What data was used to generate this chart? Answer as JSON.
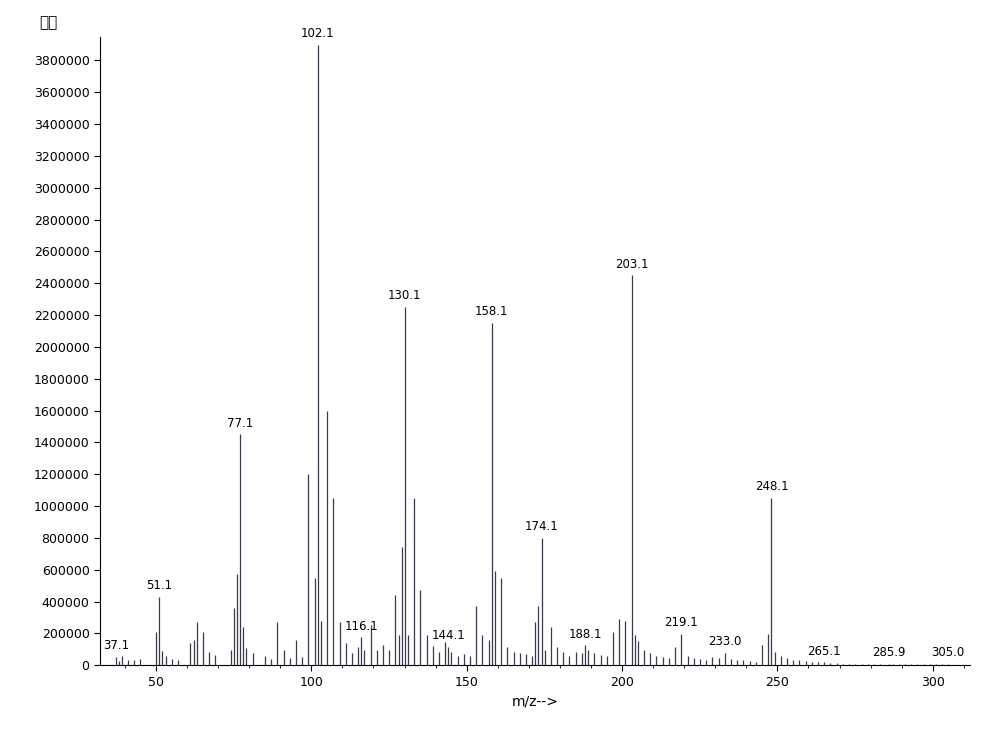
{
  "peaks": [
    {
      "mz": 37.1,
      "intensity": 50000,
      "label": "37.1",
      "label_show": true
    },
    {
      "mz": 38.1,
      "intensity": 25000,
      "label": "",
      "label_show": false
    },
    {
      "mz": 39.1,
      "intensity": 60000,
      "label": "",
      "label_show": false
    },
    {
      "mz": 41.0,
      "intensity": 35000,
      "label": "",
      "label_show": false
    },
    {
      "mz": 43.0,
      "intensity": 30000,
      "label": "",
      "label_show": false
    },
    {
      "mz": 45.0,
      "intensity": 40000,
      "label": "",
      "label_show": false
    },
    {
      "mz": 50.1,
      "intensity": 210000,
      "label": "",
      "label_show": false
    },
    {
      "mz": 51.1,
      "intensity": 430000,
      "label": "51.1",
      "label_show": true
    },
    {
      "mz": 52.1,
      "intensity": 90000,
      "label": "",
      "label_show": false
    },
    {
      "mz": 53.1,
      "intensity": 55000,
      "label": "",
      "label_show": false
    },
    {
      "mz": 55.1,
      "intensity": 40000,
      "label": "",
      "label_show": false
    },
    {
      "mz": 57.1,
      "intensity": 35000,
      "label": "",
      "label_show": false
    },
    {
      "mz": 61.1,
      "intensity": 140000,
      "label": "",
      "label_show": false
    },
    {
      "mz": 62.1,
      "intensity": 160000,
      "label": "",
      "label_show": false
    },
    {
      "mz": 63.1,
      "intensity": 270000,
      "label": "",
      "label_show": false
    },
    {
      "mz": 65.1,
      "intensity": 210000,
      "label": "",
      "label_show": false
    },
    {
      "mz": 67.1,
      "intensity": 85000,
      "label": "",
      "label_show": false
    },
    {
      "mz": 69.1,
      "intensity": 65000,
      "label": "",
      "label_show": false
    },
    {
      "mz": 74.1,
      "intensity": 95000,
      "label": "",
      "label_show": false
    },
    {
      "mz": 75.1,
      "intensity": 360000,
      "label": "",
      "label_show": false
    },
    {
      "mz": 76.1,
      "intensity": 570000,
      "label": "",
      "label_show": false
    },
    {
      "mz": 77.1,
      "intensity": 1450000,
      "label": "77.1",
      "label_show": true
    },
    {
      "mz": 78.1,
      "intensity": 240000,
      "label": "",
      "label_show": false
    },
    {
      "mz": 79.1,
      "intensity": 110000,
      "label": "",
      "label_show": false
    },
    {
      "mz": 81.1,
      "intensity": 75000,
      "label": "",
      "label_show": false
    },
    {
      "mz": 85.1,
      "intensity": 55000,
      "label": "",
      "label_show": false
    },
    {
      "mz": 87.1,
      "intensity": 40000,
      "label": "",
      "label_show": false
    },
    {
      "mz": 89.1,
      "intensity": 270000,
      "label": "",
      "label_show": false
    },
    {
      "mz": 91.1,
      "intensity": 95000,
      "label": "",
      "label_show": false
    },
    {
      "mz": 93.1,
      "intensity": 45000,
      "label": "",
      "label_show": false
    },
    {
      "mz": 95.1,
      "intensity": 160000,
      "label": "",
      "label_show": false
    },
    {
      "mz": 97.1,
      "intensity": 50000,
      "label": "",
      "label_show": false
    },
    {
      "mz": 99.1,
      "intensity": 1200000,
      "label": "",
      "label_show": false
    },
    {
      "mz": 101.1,
      "intensity": 550000,
      "label": "",
      "label_show": false
    },
    {
      "mz": 102.1,
      "intensity": 3900000,
      "label": "102.1",
      "label_show": true
    },
    {
      "mz": 103.1,
      "intensity": 280000,
      "label": "",
      "label_show": false
    },
    {
      "mz": 105.1,
      "intensity": 1600000,
      "label": "",
      "label_show": false
    },
    {
      "mz": 107.1,
      "intensity": 1050000,
      "label": "",
      "label_show": false
    },
    {
      "mz": 109.1,
      "intensity": 270000,
      "label": "",
      "label_show": false
    },
    {
      "mz": 111.1,
      "intensity": 140000,
      "label": "",
      "label_show": false
    },
    {
      "mz": 113.1,
      "intensity": 75000,
      "label": "",
      "label_show": false
    },
    {
      "mz": 115.1,
      "intensity": 115000,
      "label": "",
      "label_show": false
    },
    {
      "mz": 116.1,
      "intensity": 175000,
      "label": "116.1",
      "label_show": true
    },
    {
      "mz": 117.1,
      "intensity": 95000,
      "label": "",
      "label_show": false
    },
    {
      "mz": 119.1,
      "intensity": 250000,
      "label": "",
      "label_show": false
    },
    {
      "mz": 121.1,
      "intensity": 95000,
      "label": "",
      "label_show": false
    },
    {
      "mz": 123.1,
      "intensity": 125000,
      "label": "",
      "label_show": false
    },
    {
      "mz": 125.1,
      "intensity": 95000,
      "label": "",
      "label_show": false
    },
    {
      "mz": 127.1,
      "intensity": 440000,
      "label": "",
      "label_show": false
    },
    {
      "mz": 128.1,
      "intensity": 190000,
      "label": "",
      "label_show": false
    },
    {
      "mz": 129.1,
      "intensity": 740000,
      "label": "",
      "label_show": false
    },
    {
      "mz": 130.1,
      "intensity": 2250000,
      "label": "130.1",
      "label_show": true
    },
    {
      "mz": 131.1,
      "intensity": 190000,
      "label": "",
      "label_show": false
    },
    {
      "mz": 133.1,
      "intensity": 1050000,
      "label": "",
      "label_show": false
    },
    {
      "mz": 135.1,
      "intensity": 470000,
      "label": "",
      "label_show": false
    },
    {
      "mz": 137.1,
      "intensity": 190000,
      "label": "",
      "label_show": false
    },
    {
      "mz": 139.1,
      "intensity": 120000,
      "label": "",
      "label_show": false
    },
    {
      "mz": 141.1,
      "intensity": 85000,
      "label": "",
      "label_show": false
    },
    {
      "mz": 143.1,
      "intensity": 145000,
      "label": "",
      "label_show": false
    },
    {
      "mz": 144.1,
      "intensity": 115000,
      "label": "144.1",
      "label_show": true
    },
    {
      "mz": 145.1,
      "intensity": 80000,
      "label": "",
      "label_show": false
    },
    {
      "mz": 147.1,
      "intensity": 55000,
      "label": "",
      "label_show": false
    },
    {
      "mz": 149.1,
      "intensity": 70000,
      "label": "",
      "label_show": false
    },
    {
      "mz": 151.1,
      "intensity": 55000,
      "label": "",
      "label_show": false
    },
    {
      "mz": 153.1,
      "intensity": 370000,
      "label": "",
      "label_show": false
    },
    {
      "mz": 155.1,
      "intensity": 190000,
      "label": "",
      "label_show": false
    },
    {
      "mz": 157.1,
      "intensity": 160000,
      "label": "",
      "label_show": false
    },
    {
      "mz": 158.1,
      "intensity": 2150000,
      "label": "158.1",
      "label_show": true
    },
    {
      "mz": 159.1,
      "intensity": 590000,
      "label": "",
      "label_show": false
    },
    {
      "mz": 161.1,
      "intensity": 550000,
      "label": "",
      "label_show": false
    },
    {
      "mz": 163.1,
      "intensity": 115000,
      "label": "",
      "label_show": false
    },
    {
      "mz": 165.1,
      "intensity": 80000,
      "label": "",
      "label_show": false
    },
    {
      "mz": 167.1,
      "intensity": 75000,
      "label": "",
      "label_show": false
    },
    {
      "mz": 169.1,
      "intensity": 70000,
      "label": "",
      "label_show": false
    },
    {
      "mz": 171.1,
      "intensity": 55000,
      "label": "",
      "label_show": false
    },
    {
      "mz": 172.1,
      "intensity": 270000,
      "label": "",
      "label_show": false
    },
    {
      "mz": 173.1,
      "intensity": 370000,
      "label": "",
      "label_show": false
    },
    {
      "mz": 174.1,
      "intensity": 800000,
      "label": "174.1",
      "label_show": true
    },
    {
      "mz": 175.1,
      "intensity": 95000,
      "label": "",
      "label_show": false
    },
    {
      "mz": 177.1,
      "intensity": 240000,
      "label": "",
      "label_show": false
    },
    {
      "mz": 179.1,
      "intensity": 115000,
      "label": "",
      "label_show": false
    },
    {
      "mz": 181.1,
      "intensity": 85000,
      "label": "",
      "label_show": false
    },
    {
      "mz": 183.1,
      "intensity": 55000,
      "label": "",
      "label_show": false
    },
    {
      "mz": 185.1,
      "intensity": 85000,
      "label": "",
      "label_show": false
    },
    {
      "mz": 187.1,
      "intensity": 75000,
      "label": "",
      "label_show": false
    },
    {
      "mz": 188.1,
      "intensity": 125000,
      "label": "188.1",
      "label_show": true
    },
    {
      "mz": 189.0,
      "intensity": 95000,
      "label": "",
      "label_show": false
    },
    {
      "mz": 191.1,
      "intensity": 75000,
      "label": "",
      "label_show": false
    },
    {
      "mz": 193.1,
      "intensity": 65000,
      "label": "",
      "label_show": false
    },
    {
      "mz": 195.1,
      "intensity": 60000,
      "label": "",
      "label_show": false
    },
    {
      "mz": 197.1,
      "intensity": 210000,
      "label": "",
      "label_show": false
    },
    {
      "mz": 199.1,
      "intensity": 290000,
      "label": "",
      "label_show": false
    },
    {
      "mz": 201.1,
      "intensity": 280000,
      "label": "",
      "label_show": false
    },
    {
      "mz": 203.1,
      "intensity": 2450000,
      "label": "203.1",
      "label_show": true
    },
    {
      "mz": 204.1,
      "intensity": 190000,
      "label": "",
      "label_show": false
    },
    {
      "mz": 205.1,
      "intensity": 155000,
      "label": "",
      "label_show": false
    },
    {
      "mz": 207.1,
      "intensity": 95000,
      "label": "",
      "label_show": false
    },
    {
      "mz": 209.1,
      "intensity": 75000,
      "label": "",
      "label_show": false
    },
    {
      "mz": 211.1,
      "intensity": 60000,
      "label": "",
      "label_show": false
    },
    {
      "mz": 213.1,
      "intensity": 50000,
      "label": "",
      "label_show": false
    },
    {
      "mz": 215.1,
      "intensity": 45000,
      "label": "",
      "label_show": false
    },
    {
      "mz": 217.1,
      "intensity": 115000,
      "label": "",
      "label_show": false
    },
    {
      "mz": 219.1,
      "intensity": 195000,
      "label": "219.1",
      "label_show": true
    },
    {
      "mz": 221.1,
      "intensity": 60000,
      "label": "",
      "label_show": false
    },
    {
      "mz": 223.1,
      "intensity": 45000,
      "label": "",
      "label_show": false
    },
    {
      "mz": 225.1,
      "intensity": 40000,
      "label": "",
      "label_show": false
    },
    {
      "mz": 227.1,
      "intensity": 35000,
      "label": "",
      "label_show": false
    },
    {
      "mz": 229.1,
      "intensity": 50000,
      "label": "",
      "label_show": false
    },
    {
      "mz": 231.1,
      "intensity": 45000,
      "label": "",
      "label_show": false
    },
    {
      "mz": 233.0,
      "intensity": 75000,
      "label": "233.0",
      "label_show": true
    },
    {
      "mz": 235.1,
      "intensity": 40000,
      "label": "",
      "label_show": false
    },
    {
      "mz": 237.1,
      "intensity": 35000,
      "label": "",
      "label_show": false
    },
    {
      "mz": 239.1,
      "intensity": 30000,
      "label": "",
      "label_show": false
    },
    {
      "mz": 241.1,
      "intensity": 25000,
      "label": "",
      "label_show": false
    },
    {
      "mz": 243.1,
      "intensity": 20000,
      "label": "",
      "label_show": false
    },
    {
      "mz": 245.1,
      "intensity": 125000,
      "label": "",
      "label_show": false
    },
    {
      "mz": 247.1,
      "intensity": 195000,
      "label": "",
      "label_show": false
    },
    {
      "mz": 248.1,
      "intensity": 1050000,
      "label": "248.1",
      "label_show": true
    },
    {
      "mz": 249.1,
      "intensity": 80000,
      "label": "",
      "label_show": false
    },
    {
      "mz": 251.1,
      "intensity": 55000,
      "label": "",
      "label_show": false
    },
    {
      "mz": 253.1,
      "intensity": 45000,
      "label": "",
      "label_show": false
    },
    {
      "mz": 255.1,
      "intensity": 35000,
      "label": "",
      "label_show": false
    },
    {
      "mz": 257.1,
      "intensity": 30000,
      "label": "",
      "label_show": false
    },
    {
      "mz": 259.1,
      "intensity": 25000,
      "label": "",
      "label_show": false
    },
    {
      "mz": 261.1,
      "intensity": 20000,
      "label": "",
      "label_show": false
    },
    {
      "mz": 263.1,
      "intensity": 18000,
      "label": "",
      "label_show": false
    },
    {
      "mz": 265.1,
      "intensity": 18000,
      "label": "265.1",
      "label_show": true
    },
    {
      "mz": 267.1,
      "intensity": 12000,
      "label": "",
      "label_show": false
    },
    {
      "mz": 269.1,
      "intensity": 12000,
      "label": "",
      "label_show": false
    },
    {
      "mz": 271.1,
      "intensity": 10000,
      "label": "",
      "label_show": false
    },
    {
      "mz": 273.1,
      "intensity": 8000,
      "label": "",
      "label_show": false
    },
    {
      "mz": 275.1,
      "intensity": 8000,
      "label": "",
      "label_show": false
    },
    {
      "mz": 277.1,
      "intensity": 6000,
      "label": "",
      "label_show": false
    },
    {
      "mz": 279.1,
      "intensity": 6000,
      "label": "",
      "label_show": false
    },
    {
      "mz": 281.1,
      "intensity": 6000,
      "label": "",
      "label_show": false
    },
    {
      "mz": 283.1,
      "intensity": 6000,
      "label": "",
      "label_show": false
    },
    {
      "mz": 285.9,
      "intensity": 8000,
      "label": "285.9",
      "label_show": true
    },
    {
      "mz": 287.1,
      "intensity": 6000,
      "label": "",
      "label_show": false
    },
    {
      "mz": 289.1,
      "intensity": 6000,
      "label": "",
      "label_show": false
    },
    {
      "mz": 291.1,
      "intensity": 6000,
      "label": "",
      "label_show": false
    },
    {
      "mz": 293.1,
      "intensity": 6000,
      "label": "",
      "label_show": false
    },
    {
      "mz": 295.1,
      "intensity": 6000,
      "label": "",
      "label_show": false
    },
    {
      "mz": 297.1,
      "intensity": 6000,
      "label": "",
      "label_show": false
    },
    {
      "mz": 299.1,
      "intensity": 6000,
      "label": "",
      "label_show": false
    },
    {
      "mz": 301.1,
      "intensity": 6000,
      "label": "",
      "label_show": false
    },
    {
      "mz": 303.1,
      "intensity": 6000,
      "label": "",
      "label_show": false
    },
    {
      "mz": 305.0,
      "intensity": 6000,
      "label": "305.0",
      "label_show": true
    }
  ],
  "xlabel": "m/z-->",
  "ylabel": "丰度",
  "xlim": [
    32,
    312
  ],
  "ylim": [
    0,
    3950000
  ],
  "yticks": [
    0,
    200000,
    400000,
    600000,
    800000,
    1000000,
    1200000,
    1400000,
    1600000,
    1800000,
    2000000,
    2200000,
    2400000,
    2600000,
    2800000,
    3000000,
    3200000,
    3400000,
    3600000,
    3800000
  ],
  "xticks": [
    50,
    100,
    150,
    200,
    250,
    300
  ],
  "bar_color": "#3a3a4a",
  "label_color": "#000000",
  "background_color": "#ffffff",
  "spine_color": "#000000",
  "label_fontsize": 8.5,
  "axis_label_fontsize": 10,
  "tick_fontsize": 9,
  "fig_width": 10.0,
  "fig_height": 7.31,
  "dpi": 100
}
